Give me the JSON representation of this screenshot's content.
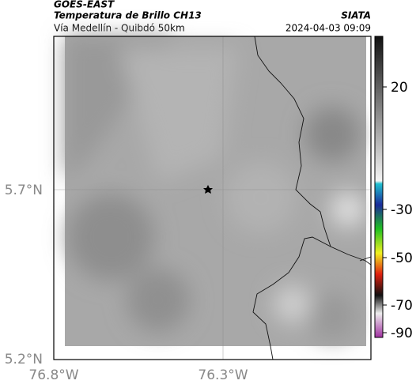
{
  "header": {
    "source": "GOES-EAST",
    "title": "Temperatura de Brillo CH13",
    "org": "SIATA",
    "subtitle": "Vía Medellín - Quibdó 50km",
    "datetime": "2024-04-03 09:09"
  },
  "axes": {
    "lat_labels": [
      "5.7°N",
      "5.2°N"
    ],
    "lon_labels": [
      "76.8°W",
      "76.3°W"
    ]
  },
  "colorbar": {
    "ticks": [
      20,
      -30,
      -50,
      -70,
      -90
    ]
  }
}
